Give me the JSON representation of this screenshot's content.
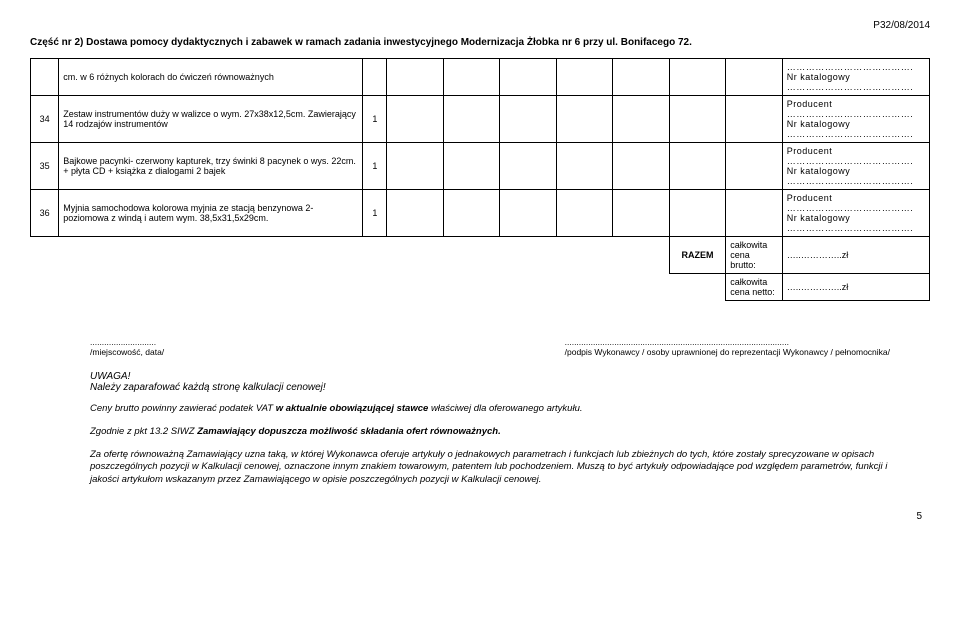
{
  "header": {
    "doc_num": "P32/08/2014",
    "section_title": "Część nr 2) Dostawa pomocy dydaktycznych i zabawek w ramach zadania inwestycyjnego Modernizacja Żłobka nr 6 przy ul. Bonifacego 72."
  },
  "rows": [
    {
      "num": "",
      "desc": "cm. w 6 różnych kolorach do ćwiczeń równoważnych",
      "qty": "",
      "prod": "………………………………….\nNr katalogowy\n…………………………………."
    },
    {
      "num": "34",
      "desc": "Zestaw instrumentów duży w walizce o wym. 27x38x12,5cm. Zawierający 14 rodzajów instrumentów",
      "qty": "1",
      "prod": "Producent\n………………………………….\nNr katalogowy\n…………………………………."
    },
    {
      "num": "35",
      "desc": "Bajkowe pacynki- czerwony kapturek, trzy świnki 8 pacynek o wys. 22cm. + płyta CD + książka z dialogami 2 bajek",
      "qty": "1",
      "prod": "Producent\n………………………………….\nNr katalogowy\n…………………………………."
    },
    {
      "num": "36",
      "desc": "Myjnia samochodowa  kolorowa myjnia ze stacją benzynowa 2- poziomowa z windą i autem wym. 38,5x31,5x29cm.",
      "qty": "1",
      "prod": "Producent\n………………………………….\nNr katalogowy\n…………………………………."
    }
  ],
  "totals": {
    "razem_label": "RAZEM",
    "brutto_label": "całkowita cena brutto:",
    "brutto_val": "…..…………..zł",
    "netto_label": "całkowita cena netto:",
    "netto_val": "…..…………..zł"
  },
  "signatures": {
    "left_dots": "............................",
    "left_label": "/miejscowość, data/",
    "right_dots": "...............................................................................................",
    "right_label": "/podpis Wykonawcy / osoby uprawnionej do reprezentacji Wykonawcy / pełnomocnika/"
  },
  "uwaga": {
    "title": "UWAGA!",
    "line": "Należy zaparafować każdą stronę kalkulacji cenowej!"
  },
  "body": {
    "p1_a": "Ceny brutto powinny zawierać podatek VAT ",
    "p1_b": "w aktualnie obowiązującej stawce ",
    "p1_c": "właściwej dla oferowanego artykułu.",
    "p2_a": "Zgodnie z pkt 13.2 SIWZ  ",
    "p2_b": "Zamawiający dopuszcza możliwość składania ofert równoważnych.",
    "p3": "Za ofertę równoważną Zamawiający uzna taką, w której Wykonawca oferuje artykuły o jednakowych parametrach i funkcjach lub zbieżnych do tych, które zostały sprecyzowane w opisach poszczególnych pozycji w Kalkulacji cenowej, oznaczone innym znakiem towarowym, patentem lub pochodzeniem. Muszą to być artykuły odpowiadające pod względem parametrów, funkcji i jakości artykułom wskazanym przez Zamawiającego w opisie poszczególnych pozycji w Kalkulacji cenowej."
  },
  "page_num": "5"
}
